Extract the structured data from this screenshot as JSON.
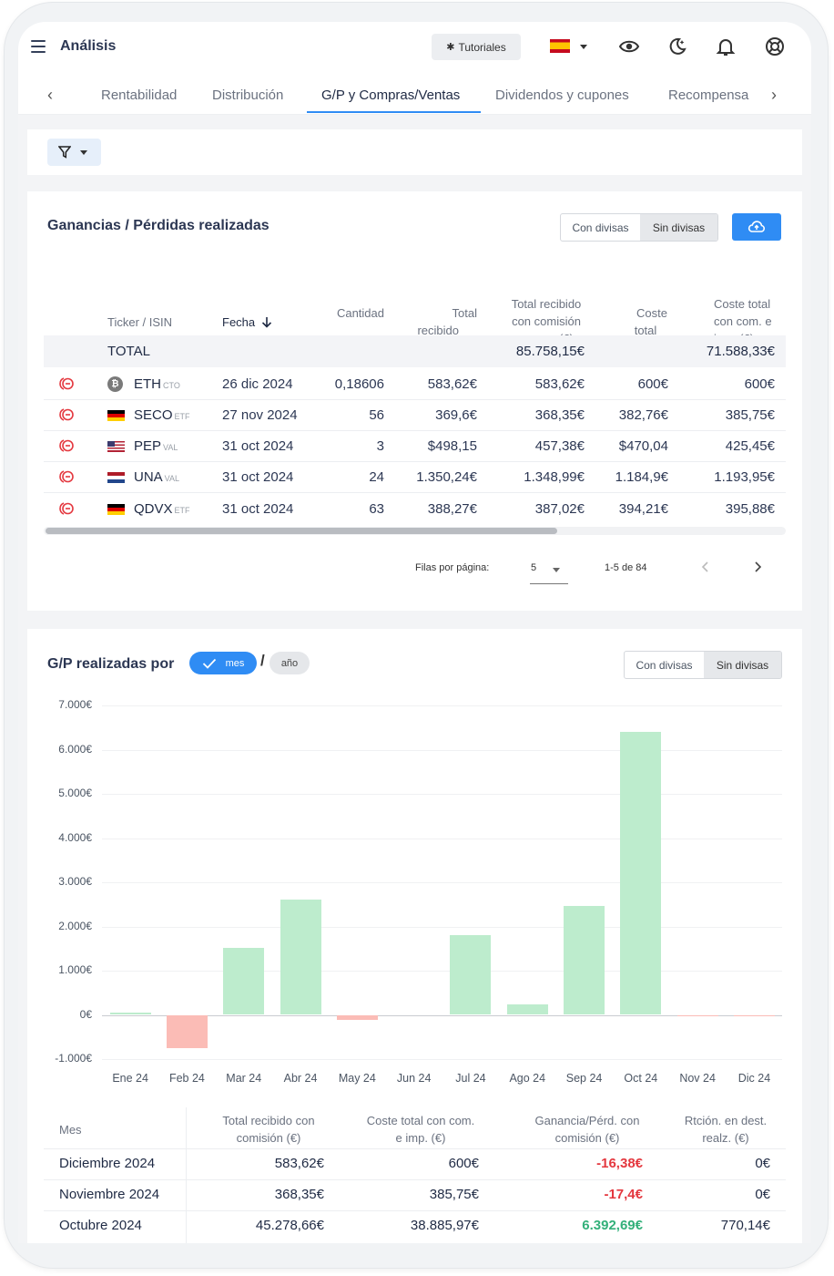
{
  "header": {
    "title": "Análisis",
    "tutorials_label": "Tutoriales",
    "language_flag": "es-flag"
  },
  "tabs": {
    "prev": "‹",
    "next": "›",
    "items": [
      {
        "label": "Rentabilidad",
        "active": false
      },
      {
        "label": "Distribución",
        "active": false
      },
      {
        "label": "G/P y Compras/Ventas",
        "active": true
      },
      {
        "label": "Dividendos y cupones",
        "active": false
      },
      {
        "label": "Recompensa",
        "active": false
      }
    ]
  },
  "realized": {
    "title": "Ganancias / Pérdidas realizadas",
    "toggle": {
      "option1": "Con divisas",
      "option2": "Sin divisas",
      "selected": "Sin divisas"
    },
    "columns": {
      "ticker": "Ticker / ISIN",
      "fecha": "Fecha",
      "cantidad": "Cantidad",
      "total_recibido_l1": "Total",
      "total_recibido_l2": "recibido",
      "recibido_com_l1": "Total recibido",
      "recibido_com_l2": "con comisión",
      "recibido_com_l3": "(€)",
      "coste_l1": "Coste",
      "coste_l2": "total",
      "coste_com_l1": "Coste total",
      "coste_com_l2": "con com. e",
      "coste_com_l3": "imp. (€)"
    },
    "total": {
      "label": "TOTAL",
      "recibido_com": "85.758,15€",
      "coste_com": "71.588,33€"
    },
    "rows": [
      {
        "ticker": "ETH",
        "type": "CTO",
        "flag": "bitcoin-icon",
        "fecha": "26 dic 2024",
        "cantidad": "0,18606",
        "total_recibido": "583,62€",
        "recibido_com": "583,62€",
        "coste": "600€",
        "coste_com": "600€"
      },
      {
        "ticker": "SECO",
        "type": "ETF",
        "flag": "germany-flag",
        "fecha": "27 nov 2024",
        "cantidad": "56",
        "total_recibido": "369,6€",
        "recibido_com": "368,35€",
        "coste": "382,76€",
        "coste_com": "385,75€"
      },
      {
        "ticker": "PEP",
        "type": "VAL",
        "flag": "usa-flag",
        "fecha": "31 oct 2024",
        "cantidad": "3",
        "total_recibido": "$498,15",
        "recibido_com": "457,38€",
        "coste": "$470,04",
        "coste_com": "425,45€"
      },
      {
        "ticker": "UNA",
        "type": "VAL",
        "flag": "netherlands-flag",
        "fecha": "31 oct 2024",
        "cantidad": "24",
        "total_recibido": "1.350,24€",
        "recibido_com": "1.348,99€",
        "coste": "1.184,9€",
        "coste_com": "1.193,95€"
      },
      {
        "ticker": "QDVX",
        "type": "ETF",
        "flag": "germany-flag",
        "fecha": "31 oct 2024",
        "cantidad": "63",
        "total_recibido": "388,27€",
        "recibido_com": "387,02€",
        "coste": "394,21€",
        "coste_com": "395,88€"
      }
    ],
    "pagination": {
      "rows_label": "Filas por página:",
      "rows_value": "5",
      "range": "1-5 de 84"
    }
  },
  "monthly": {
    "title": "G/P realizadas por",
    "pill_mes": "mes",
    "pill_ano": "año",
    "slash": "/",
    "toggle": {
      "option1": "Con divisas",
      "option2": "Sin divisas",
      "selected": "Sin divisas"
    },
    "colors": {
      "positive": "#bdeccd",
      "negative": "#fbbcb6"
    },
    "table": {
      "col_mes": "Mes",
      "col_recibido_l1": "Total recibido con",
      "col_recibido_l2": "comisión (€)",
      "col_coste_l1": "Coste total con com.",
      "col_coste_l2": "e imp. (€)",
      "col_gp_l1": "Ganancia/Pérd. con",
      "col_gp_l2": "comisión (€)",
      "col_ret_l1": "Rtción. en dest.",
      "col_ret_l2": "realz. (€)",
      "rows": [
        {
          "mes": "Diciembre 2024",
          "recibido": "583,62€",
          "coste": "600€",
          "gp": "-16,38€",
          "ret": "0€"
        },
        {
          "mes": "Noviembre 2024",
          "recibido": "368,35€",
          "coste": "385,75€",
          "gp": "-17,4€",
          "ret": "0€"
        },
        {
          "mes": "Octubre 2024",
          "recibido": "45.278,66€",
          "coste": "38.885,97€",
          "gp": "6.392,69€",
          "ret": "770,14€"
        }
      ]
    }
  },
  "chart_data": {
    "type": "bar",
    "categories": [
      "Ene 24",
      "Feb 24",
      "Mar 24",
      "Abr 24",
      "May 24",
      "Jun 24",
      "Jul 24",
      "Ago 24",
      "Sep 24",
      "Oct 24",
      "Nov 24",
      "Dic 24"
    ],
    "values": [
      50,
      -760,
      1520,
      2600,
      -120,
      0,
      1800,
      230,
      2460,
      6392.69,
      -17.4,
      -16.38
    ],
    "y_ticks": [
      "7.000€",
      "6.000€",
      "5.000€",
      "4.000€",
      "3.000€",
      "2.000€",
      "1.000€",
      "0€",
      "-1.000€"
    ],
    "ylim": [
      -1000,
      7000
    ],
    "grid": true
  }
}
